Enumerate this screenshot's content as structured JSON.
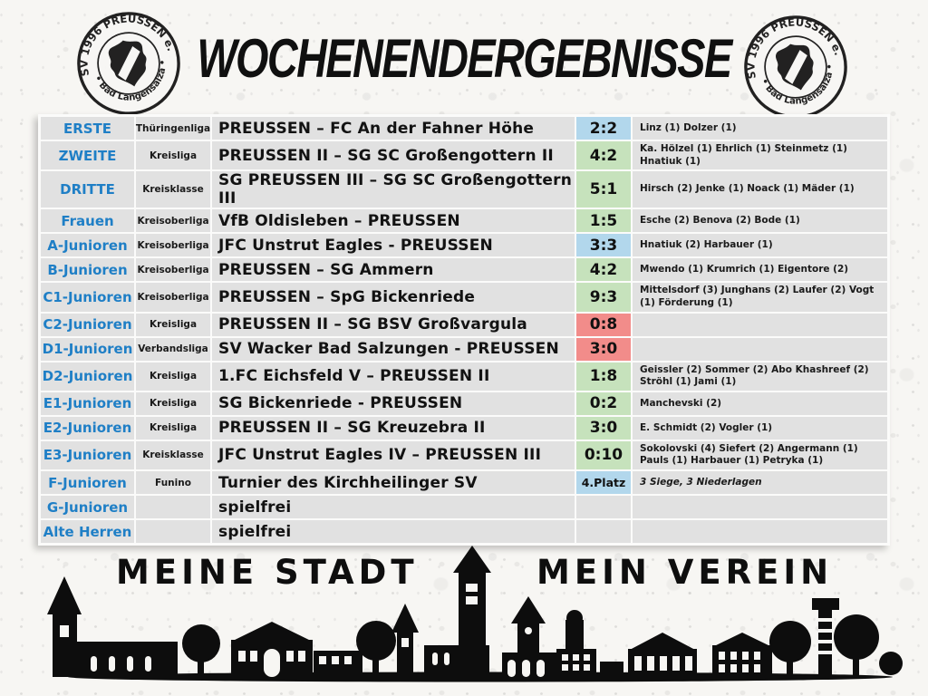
{
  "title": "WOCHENENDERGEBNISSE",
  "logo": {
    "top": "FSV 1996 PREUSSEN e.V.",
    "bottom": "• Bad Langensalza •"
  },
  "footer": {
    "left": "MEINE STADT",
    "right": "MEIN VEREIN"
  },
  "colors": {
    "team_text": "#1f7fc6",
    "cell_bg": "#e1e1e1",
    "draw_bg": "#b2d7ec",
    "win_bg": "#c6e2bc",
    "loss_bg": "#f28c8a"
  },
  "results": [
    {
      "team": "ERSTE",
      "league": "Thüringenliga",
      "match": "PREUSSEN – FC An der Fahner Höhe",
      "score": "2:2",
      "score_type": "draw",
      "scorers": "Linz (1) Dolzer (1)"
    },
    {
      "team": "ZWEITE",
      "league": "Kreisliga",
      "match": "PREUSSEN II – SG SC Großengottern II",
      "score": "4:2",
      "score_type": "win",
      "scorers": "Ka. Hölzel (1) Ehrlich (1) Steinmetz (1) Hnatiuk (1)"
    },
    {
      "team": "DRITTE",
      "league": "Kreisklasse",
      "match": "SG PREUSSEN III – SG SC Großengottern III",
      "score": "5:1",
      "score_type": "win",
      "scorers": "Hirsch (2) Jenke (1) Noack (1) Mäder (1)"
    },
    {
      "team": "Frauen",
      "league": "Kreisoberliga",
      "match": "VfB Oldisleben – PREUSSEN",
      "score": "1:5",
      "score_type": "win",
      "scorers": "Esche (2) Benova (2) Bode (1)"
    },
    {
      "team": "A-Junioren",
      "league": "Kreisoberliga",
      "match": "JFC Unstrut Eagles - PREUSSEN",
      "score": "3:3",
      "score_type": "draw",
      "scorers": "Hnatiuk (2) Harbauer (1)"
    },
    {
      "team": "B-Junioren",
      "league": "Kreisoberliga",
      "match": "PREUSSEN – SG Ammern",
      "score": "4:2",
      "score_type": "win",
      "scorers": "Mwendo (1) Krumrich (1) Eigentore (2)"
    },
    {
      "team": "C1-Junioren",
      "league": "Kreisoberliga",
      "match": "PREUSSEN – SpG Bickenriede",
      "score": "9:3",
      "score_type": "win",
      "scorers": "Mittelsdorf (3) Junghans (2) Laufer (2) Vogt (1) Förderung (1)"
    },
    {
      "team": "C2-Junioren",
      "league": "Kreisliga",
      "match": "PREUSSEN II – SG BSV Großvargula",
      "score": "0:8",
      "score_type": "loss",
      "scorers": ""
    },
    {
      "team": "D1-Junioren",
      "league": "Verbandsliga",
      "match": "SV Wacker Bad Salzungen - PREUSSEN",
      "score": "3:0",
      "score_type": "loss",
      "scorers": ""
    },
    {
      "team": "D2-Junioren",
      "league": "Kreisliga",
      "match": "1.FC Eichsfeld V – PREUSSEN II",
      "score": "1:8",
      "score_type": "win",
      "scorers": "Geissler (2) Sommer (2) Abo Khashreef (2) Ströhl (1) Jami (1)"
    },
    {
      "team": "E1-Junioren",
      "league": "Kreisliga",
      "match": "SG Bickenriede - PREUSSEN",
      "score": "0:2",
      "score_type": "win",
      "scorers": "Manchevski (2)"
    },
    {
      "team": "E2-Junioren",
      "league": "Kreisliga",
      "match": "PREUSSEN II – SG Kreuzebra II",
      "score": "3:0",
      "score_type": "win",
      "scorers": "E. Schmidt (2) Vogler (1)"
    },
    {
      "team": "E3-Junioren",
      "league": "Kreisklasse",
      "match": "JFC Unstrut Eagles IV – PREUSSEN III",
      "score": "0:10",
      "score_type": "win",
      "scorers": "Sokolovski (4) Siefert (2) Angermann (1) Pauls (1) Harbauer (1) Petryka (1)"
    },
    {
      "team": "F-Junioren",
      "league": "Funino",
      "match": "Turnier des Kirchheilinger SV",
      "score": "4.Platz",
      "score_type": "info",
      "scorers": "3 Siege, 3 Niederlagen",
      "scorers_italic": true
    },
    {
      "team": "G-Junioren",
      "league": "",
      "match": "spielfrei",
      "score": "",
      "score_type": "none",
      "scorers": ""
    },
    {
      "team": "Alte Herren",
      "league": "",
      "match": "spielfrei",
      "score": "",
      "score_type": "none",
      "scorers": ""
    }
  ]
}
